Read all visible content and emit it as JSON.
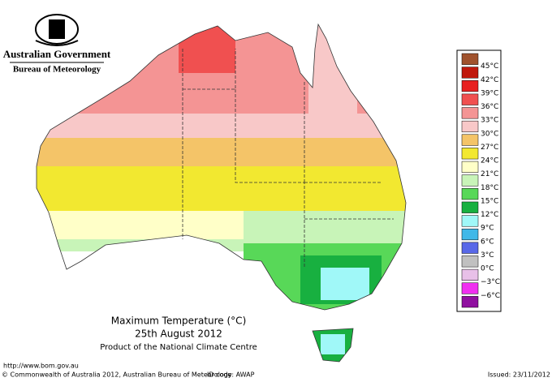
{
  "header": {
    "government": "Australian Government",
    "agency": "Bureau of Meteorology"
  },
  "map": {
    "title": "Maximum Temperature (°C)",
    "date": "25th August 2012",
    "product": "Product of the National Climate Centre"
  },
  "legend": [
    {
      "label": "45°C",
      "color": "#a0522d"
    },
    {
      "label": "42°C",
      "color": "#c0180c"
    },
    {
      "label": "39°C",
      "color": "#e82020"
    },
    {
      "label": "36°C",
      "color": "#f05050"
    },
    {
      "label": "33°C",
      "color": "#f49494"
    },
    {
      "label": "30°C",
      "color": "#f8c8c8"
    },
    {
      "label": "27°C",
      "color": "#f4c468"
    },
    {
      "label": "24°C",
      "color": "#f2e830"
    },
    {
      "label": "21°C",
      "color": "#ffffc8"
    },
    {
      "label": "18°C",
      "color": "#c8f4b8"
    },
    {
      "label": "15°C",
      "color": "#58d858"
    },
    {
      "label": "12°C",
      "color": "#18b040"
    },
    {
      "label": "9°C",
      "color": "#a0f8f8"
    },
    {
      "label": "6°C",
      "color": "#40b8e8"
    },
    {
      "label": "3°C",
      "color": "#5868e8"
    },
    {
      "label": "0°C",
      "color": "#c0c0c0"
    },
    {
      "label": "−3°C",
      "color": "#e8c0e8"
    },
    {
      "label": "−6°C",
      "color": "#f030f0"
    },
    {
      "label": "",
      "color": "#9010a0"
    }
  ],
  "footer": {
    "url": "http://www.bom.gov.au",
    "copyright": "© Commonwealth of Australia 2012, Australian Bureau of Meteorology",
    "id_code": "ID code: AWAP",
    "issued": "Issued: 23/11/2012"
  }
}
